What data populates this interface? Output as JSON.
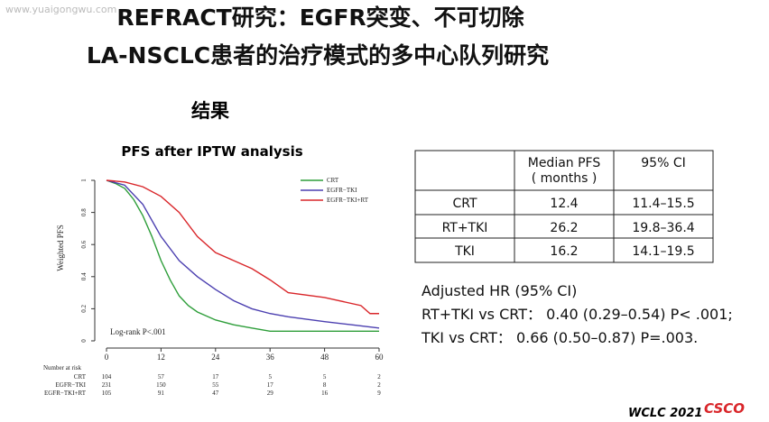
{
  "watermark": "www.yuaigongwu.com",
  "header": {
    "title_lines": [
      "REFRACT研究：EGFR突变、不可切除",
      "LA-NSCLC患者的治疗模式的多中心队列研究"
    ],
    "section": "结果"
  },
  "chart_data": {
    "type": "line",
    "step": true,
    "title": "PFS after IPTW analysis",
    "y_label": "Weighted PFS",
    "xlim": [
      0,
      60
    ],
    "xticks": [
      0,
      12,
      24,
      36,
      48,
      60
    ],
    "ylim": [
      0,
      1
    ],
    "yticks": [
      0,
      0.2,
      0.4,
      0.6,
      0.8,
      1
    ],
    "legend": "upper right",
    "annotation": "Log-rank P<.001",
    "series": [
      {
        "name": "CRT",
        "color": "#2e9e3a",
        "x": [
          0,
          2,
          4,
          6,
          8,
          10,
          12,
          14,
          16,
          18,
          20,
          24,
          28,
          32,
          36,
          48,
          60
        ],
        "values": [
          1,
          0.98,
          0.95,
          0.88,
          0.78,
          0.65,
          0.5,
          0.38,
          0.28,
          0.22,
          0.18,
          0.13,
          0.1,
          0.08,
          0.06,
          0.06,
          0.06
        ]
      },
      {
        "name": "EGFR−TKI",
        "color": "#4b3fb0",
        "x": [
          0,
          4,
          8,
          12,
          16,
          20,
          24,
          28,
          32,
          36,
          40,
          48,
          54,
          60
        ],
        "values": [
          1,
          0.97,
          0.85,
          0.65,
          0.5,
          0.4,
          0.32,
          0.25,
          0.2,
          0.17,
          0.15,
          0.12,
          0.1,
          0.08
        ]
      },
      {
        "name": "EGFR−TKI+RT",
        "color": "#d9262a",
        "x": [
          0,
          4,
          8,
          12,
          16,
          20,
          24,
          28,
          32,
          36,
          40,
          48,
          56,
          58,
          60
        ],
        "values": [
          1,
          0.99,
          0.96,
          0.9,
          0.8,
          0.65,
          0.55,
          0.5,
          0.45,
          0.38,
          0.3,
          0.27,
          0.22,
          0.17,
          0.17
        ]
      }
    ],
    "risk_table": {
      "title": "Number at risk",
      "rows": [
        {
          "name": "CRT",
          "counts": [
            "104",
            "57",
            "17",
            "5",
            "5",
            "2"
          ]
        },
        {
          "name": "EGFR−TKI",
          "counts": [
            "231",
            "150",
            "55",
            "17",
            "8",
            "2"
          ]
        },
        {
          "name": "EGFR−TKI+RT",
          "counts": [
            "105",
            "91",
            "47",
            "29",
            "16",
            "9"
          ]
        }
      ]
    }
  },
  "table": {
    "header": [
      [
        "Median PFS",
        "( months )"
      ],
      [
        "95% CI"
      ]
    ],
    "rows": [
      [
        "CRT",
        "12.4",
        "11.4–15.5"
      ],
      [
        "RT+TKI",
        "26.2",
        "19.8–36.4"
      ],
      [
        "TKI",
        "16.2",
        "14.1–19.5"
      ]
    ]
  },
  "hr": [
    "Adjusted HR (95% CI)",
    "RT+TKI vs CRT： 0.40 (0.29–0.54) P< .001;",
    "TKI vs CRT： 0.66 (0.50–0.87) P=.003."
  ],
  "footer": {
    "conference": "WCLC 2021",
    "logo": "CSCO"
  }
}
